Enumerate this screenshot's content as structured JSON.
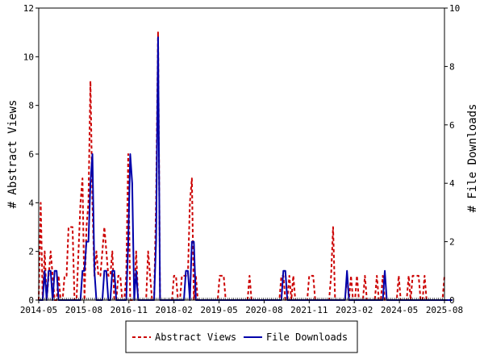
{
  "chart_data": {
    "type": "line",
    "x_ticks": [
      "2014-05",
      "2015-08",
      "2016-11",
      "2018-02",
      "2019-05",
      "2020-08",
      "2021-11",
      "2023-02",
      "2024-05",
      "2025-08"
    ],
    "y_left": {
      "label": "# Abstract Views",
      "ylim": [
        0,
        12
      ],
      "ticks": [
        0,
        2,
        4,
        6,
        8,
        10,
        12
      ]
    },
    "y_right": {
      "label": "# File Downloads",
      "ylim": [
        0,
        10
      ],
      "ticks": [
        0,
        2,
        4,
        6,
        8,
        10
      ]
    },
    "legend_position": "bottom-center",
    "grid": false,
    "series": [
      {
        "name": "Abstract Views",
        "axis": "left",
        "color": "#cc0000",
        "dash": true,
        "values": [
          0,
          4,
          0,
          2,
          0,
          1,
          2,
          1,
          0,
          0,
          1,
          0,
          0,
          1,
          1,
          3,
          3,
          3,
          0,
          0,
          2,
          4,
          5,
          0,
          3,
          4,
          9,
          4,
          1,
          2,
          1,
          1,
          2,
          3,
          2,
          1,
          1,
          2,
          0,
          0,
          1,
          1,
          0,
          0,
          1,
          6,
          0,
          0,
          0,
          2,
          0,
          0,
          0,
          0,
          0,
          2,
          1,
          0,
          0,
          4,
          11,
          0,
          0,
          0,
          0,
          0,
          0,
          0,
          1,
          1,
          0,
          0,
          1,
          1,
          1,
          1,
          4,
          5,
          0,
          1,
          0,
          0,
          0,
          0,
          0,
          0,
          0,
          0,
          0,
          0,
          0,
          1,
          1,
          1,
          0,
          0,
          0,
          0,
          0,
          0,
          0,
          0,
          0,
          0,
          0,
          0,
          1,
          0,
          0,
          0,
          0,
          0,
          0,
          0,
          0,
          0,
          0,
          0,
          0,
          0,
          0,
          0,
          1,
          1,
          0,
          0,
          1,
          0,
          1,
          0,
          0,
          0,
          0,
          0,
          0,
          0,
          1,
          1,
          1,
          0,
          0,
          0,
          0,
          0,
          0,
          0,
          0,
          1,
          3,
          0,
          0,
          0,
          0,
          0,
          0,
          1,
          0,
          1,
          0,
          0,
          1,
          0,
          0,
          0,
          1,
          0,
          0,
          0,
          0,
          0,
          1,
          0,
          0,
          1,
          0,
          0,
          0,
          0,
          0,
          0,
          0,
          1,
          0,
          0,
          0,
          0,
          1,
          0,
          1,
          1,
          1,
          1,
          0,
          0,
          1,
          0,
          0,
          0,
          0,
          0,
          0,
          0,
          0,
          0,
          1
        ]
      },
      {
        "name": "File Downloads",
        "axis": "right",
        "color": "#0000aa",
        "dash": false,
        "values": [
          0,
          0,
          0,
          1,
          0,
          1,
          1,
          0,
          1,
          1,
          0,
          0,
          0,
          0,
          0,
          0,
          0,
          0,
          0,
          0,
          0,
          0,
          1,
          1,
          2,
          2,
          4,
          5,
          1,
          0,
          0,
          0,
          0,
          1,
          1,
          0,
          0,
          1,
          1,
          0,
          0,
          0,
          0,
          0,
          0,
          2,
          5,
          4,
          0,
          1,
          0,
          0,
          0,
          0,
          0,
          0,
          0,
          0,
          0,
          2,
          9,
          0,
          0,
          0,
          0,
          0,
          0,
          0,
          0,
          0,
          0,
          0,
          0,
          0,
          1,
          1,
          0,
          2,
          2,
          0,
          0,
          0,
          0,
          0,
          0,
          0,
          0,
          0,
          0,
          0,
          0,
          0,
          0,
          0,
          0,
          0,
          0,
          0,
          0,
          0,
          0,
          0,
          0,
          0,
          0,
          0,
          0,
          0,
          0,
          0,
          0,
          0,
          0,
          0,
          0,
          0,
          0,
          0,
          0,
          0,
          0,
          0,
          0,
          1,
          1,
          0,
          0,
          0,
          0,
          0,
          0,
          0,
          0,
          0,
          0,
          0,
          0,
          0,
          0,
          0,
          0,
          0,
          0,
          0,
          0,
          0,
          0,
          0,
          0,
          0,
          0,
          0,
          0,
          0,
          0,
          1,
          0,
          0,
          0,
          0,
          0,
          0,
          0,
          0,
          0,
          0,
          0,
          0,
          0,
          0,
          0,
          0,
          0,
          0,
          1,
          0,
          0,
          0,
          0,
          0,
          0,
          0,
          0,
          0,
          0,
          0,
          0,
          0,
          0,
          0,
          0,
          0,
          0,
          0,
          0,
          0,
          0,
          0,
          0,
          0,
          0,
          0,
          0,
          0,
          0,
          0,
          0,
          0,
          0
        ]
      }
    ]
  }
}
